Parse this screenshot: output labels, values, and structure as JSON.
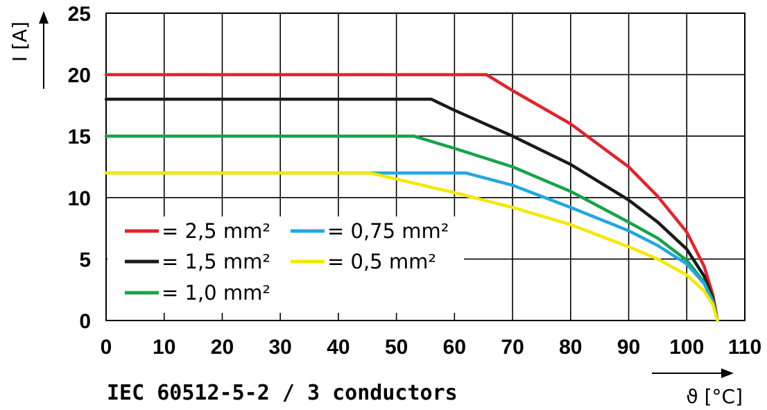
{
  "caption": "IEC 60512-5-2 / 3 conductors",
  "chart_data": {
    "type": "line",
    "xlabel": "ϑ [°C]",
    "ylabel": "I [A]",
    "xlim": [
      0,
      110
    ],
    "ylim": [
      0,
      25
    ],
    "xticks": [
      "0",
      "10",
      "20",
      "30",
      "40",
      "50",
      "60",
      "70",
      "80",
      "90",
      "100",
      "110"
    ],
    "yticks": [
      "0",
      "5",
      "10",
      "15",
      "20",
      "25"
    ],
    "grid": true,
    "legend_position": "lower-left, inside plot",
    "series": [
      {
        "name": "= 2,5 mm²",
        "color": "#e3232a",
        "points": [
          [
            0,
            20
          ],
          [
            65.5,
            20
          ],
          [
            70,
            18.7
          ],
          [
            80,
            16
          ],
          [
            90,
            12.5
          ],
          [
            95,
            10.1
          ],
          [
            100,
            7.2
          ],
          [
            103,
            4.4
          ],
          [
            104.5,
            2.1
          ],
          [
            105.3,
            0
          ]
        ]
      },
      {
        "name": "= 1,5 mm²",
        "color": "#1a1a1a",
        "points": [
          [
            0,
            18
          ],
          [
            56,
            18
          ],
          [
            60,
            17.1
          ],
          [
            70,
            15
          ],
          [
            80,
            12.7
          ],
          [
            90,
            9.8
          ],
          [
            95,
            8
          ],
          [
            100,
            5.8
          ],
          [
            103,
            3.6
          ],
          [
            104.5,
            1.8
          ],
          [
            105.3,
            0
          ]
        ]
      },
      {
        "name": "= 1,0 mm²",
        "color": "#16a34a",
        "points": [
          [
            0,
            15
          ],
          [
            53,
            15
          ],
          [
            60,
            14
          ],
          [
            70,
            12.5
          ],
          [
            80,
            10.5
          ],
          [
            90,
            8
          ],
          [
            95,
            6.7
          ],
          [
            100,
            4.9
          ],
          [
            103,
            3.1
          ],
          [
            104.5,
            1.6
          ],
          [
            105.3,
            0
          ]
        ]
      },
      {
        "name": "= 0,75 mm²",
        "color": "#22a7e0",
        "points": [
          [
            0,
            12
          ],
          [
            62,
            12
          ],
          [
            70,
            11
          ],
          [
            80,
            9.2
          ],
          [
            90,
            7.3
          ],
          [
            95,
            6.1
          ],
          [
            100,
            4.6
          ],
          [
            103,
            3
          ],
          [
            104.5,
            1.5
          ],
          [
            105.3,
            0
          ]
        ]
      },
      {
        "name": "= 0,5 mm²",
        "color": "#f5e800",
        "points": [
          [
            0,
            12
          ],
          [
            45.5,
            12
          ],
          [
            50,
            11.5
          ],
          [
            60,
            10.4
          ],
          [
            70,
            9.2
          ],
          [
            80,
            7.8
          ],
          [
            90,
            6
          ],
          [
            95,
            5
          ],
          [
            100,
            3.7
          ],
          [
            103,
            2.4
          ],
          [
            104.5,
            1.3
          ],
          [
            105.3,
            0
          ]
        ]
      }
    ]
  }
}
